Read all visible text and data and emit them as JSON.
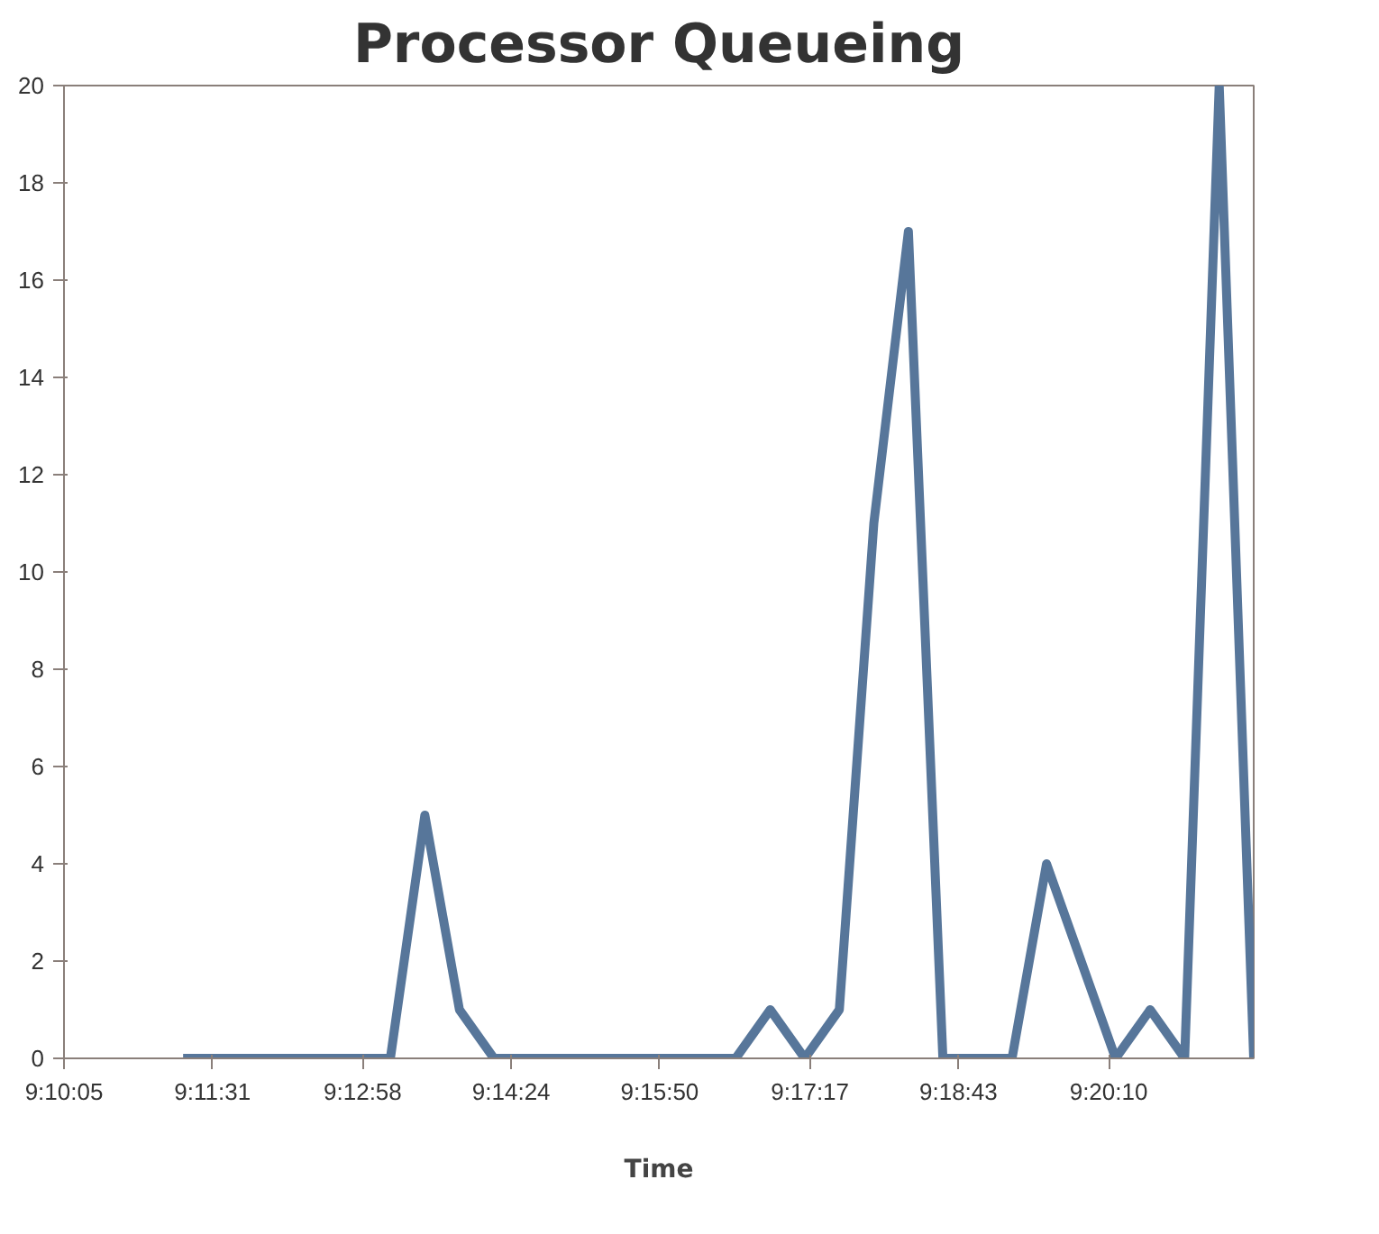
{
  "chart_data": {
    "type": "line",
    "title": "Processor Queueing",
    "xlabel": "Time",
    "x": [
      9.18722,
      9.19278,
      9.19833,
      9.20389,
      9.20944,
      9.215,
      9.22056,
      9.22611,
      9.23167,
      9.23722,
      9.24278,
      9.24833,
      9.25389,
      9.25944,
      9.265,
      9.27056,
      9.27611,
      9.28167,
      9.28722,
      9.29278,
      9.29833,
      9.30389,
      9.30944,
      9.315,
      9.32056,
      9.32611,
      9.33167,
      9.33722,
      9.34278,
      9.34833,
      9.35389,
      9.35944
    ],
    "series": [
      {
        "color": "#57769a",
        "values": [
          0,
          0,
          0,
          0,
          0,
          0,
          0,
          5,
          1,
          0,
          0,
          0,
          0,
          0,
          0,
          0,
          0,
          1,
          0,
          1,
          11,
          17,
          0,
          0,
          0,
          4,
          2,
          0,
          1,
          0,
          20,
          0
        ]
      }
    ],
    "xlim": [
      9.16806,
      9.35944
    ],
    "xticks": [
      {
        "value": 9.16806,
        "label": "9:10:05"
      },
      {
        "value": 9.19194,
        "label": "9:11:31"
      },
      {
        "value": 9.21611,
        "label": "9:12:58"
      },
      {
        "value": 9.24,
        "label": "9:14:24"
      },
      {
        "value": 9.26389,
        "label": "9:15:50"
      },
      {
        "value": 9.28806,
        "label": "9:17:17"
      },
      {
        "value": 9.31194,
        "label": "9:18:43"
      },
      {
        "value": 9.33611,
        "label": "9:20:10"
      }
    ],
    "ylim": [
      0,
      20
    ],
    "yticks": [
      0,
      2,
      4,
      6,
      8,
      10,
      12,
      14,
      16,
      18,
      20
    ],
    "line_style": "solid"
  }
}
